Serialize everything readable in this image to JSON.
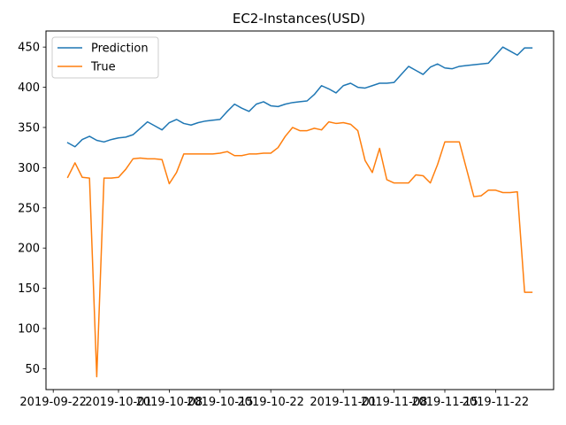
{
  "chart_data": {
    "type": "line",
    "title": "EC2-Instances(USD)",
    "xlabel": "",
    "ylabel": "",
    "xlim": [
      "2019-09-21",
      "2019-11-30"
    ],
    "ylim": [
      24,
      470
    ],
    "grid": false,
    "legend": "top-left",
    "x_ticks": [
      {
        "date": "2019-09-22",
        "label": "2019-09-22"
      },
      {
        "date": "2019-10-01",
        "label": "2019-10-01"
      },
      {
        "date": "2019-10-08",
        "label": "2019-10-08"
      },
      {
        "date": "2019-10-15",
        "label": "2019-10-15"
      },
      {
        "date": "2019-10-22",
        "label": "2019-10-22"
      },
      {
        "date": "2019-11-01",
        "label": "2019-11-01"
      },
      {
        "date": "2019-11-08",
        "label": "2019-11-08"
      },
      {
        "date": "2019-11-15",
        "label": "2019-11-15"
      },
      {
        "date": "2019-11-22",
        "label": "2019-11-22"
      }
    ],
    "y_ticks": [
      50,
      100,
      150,
      200,
      250,
      300,
      350,
      400,
      450
    ],
    "x": [
      "2019-09-24",
      "2019-09-25",
      "2019-09-26",
      "2019-09-27",
      "2019-09-28",
      "2019-09-29",
      "2019-09-30",
      "2019-10-01",
      "2019-10-02",
      "2019-10-03",
      "2019-10-04",
      "2019-10-05",
      "2019-10-06",
      "2019-10-07",
      "2019-10-08",
      "2019-10-09",
      "2019-10-10",
      "2019-10-11",
      "2019-10-12",
      "2019-10-13",
      "2019-10-14",
      "2019-10-15",
      "2019-10-16",
      "2019-10-17",
      "2019-10-18",
      "2019-10-19",
      "2019-10-20",
      "2019-10-21",
      "2019-10-22",
      "2019-10-23",
      "2019-10-24",
      "2019-10-25",
      "2019-10-26",
      "2019-10-27",
      "2019-10-28",
      "2019-10-29",
      "2019-10-30",
      "2019-10-31",
      "2019-11-01",
      "2019-11-02",
      "2019-11-03",
      "2019-11-04",
      "2019-11-05",
      "2019-11-06",
      "2019-11-07",
      "2019-11-08",
      "2019-11-09",
      "2019-11-10",
      "2019-11-11",
      "2019-11-12",
      "2019-11-13",
      "2019-11-14",
      "2019-11-15",
      "2019-11-16",
      "2019-11-17",
      "2019-11-18",
      "2019-11-19",
      "2019-11-20",
      "2019-11-21",
      "2019-11-22",
      "2019-11-23",
      "2019-11-24",
      "2019-11-25",
      "2019-11-26",
      "2019-11-27"
    ],
    "series": [
      {
        "name": "Prediction",
        "color": "#1f77b4",
        "values": [
          331,
          326,
          335,
          339,
          334,
          332,
          335,
          337,
          338,
          341,
          349,
          357,
          352,
          347,
          356,
          360,
          355,
          353,
          356,
          358,
          359,
          360,
          370,
          379,
          374,
          370,
          379,
          382,
          377,
          376,
          379,
          381,
          382,
          383,
          391,
          402,
          398,
          393,
          402,
          405,
          400,
          399,
          402,
          405,
          405,
          406,
          416,
          426,
          421,
          416,
          425,
          429,
          424,
          423,
          426,
          427,
          428,
          429,
          430,
          440,
          450,
          445,
          440,
          449,
          449
        ]
      },
      {
        "name": "True",
        "color": "#ff7f0e",
        "values": [
          288,
          306,
          288,
          287,
          40,
          287,
          287,
          288,
          298,
          311,
          312,
          311,
          311,
          310,
          280,
          294,
          317,
          317,
          317,
          317,
          317,
          318,
          320,
          315,
          315,
          317,
          317,
          318,
          318,
          325,
          339,
          350,
          346,
          346,
          349,
          347,
          357,
          355,
          356,
          354,
          346,
          309,
          294,
          324,
          285,
          281,
          281,
          281,
          291,
          290,
          281,
          304,
          332,
          332,
          332,
          298,
          264,
          265,
          272,
          272,
          269,
          269,
          270,
          145,
          145
        ]
      }
    ]
  }
}
